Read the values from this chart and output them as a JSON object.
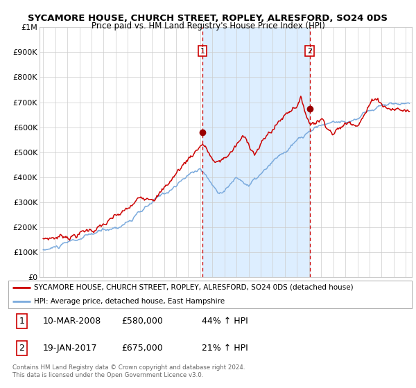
{
  "title": "SYCAMORE HOUSE, CHURCH STREET, ROPLEY, ALRESFORD, SO24 0DS",
  "subtitle": "Price paid vs. HM Land Registry's House Price Index (HPI)",
  "title_fontsize": 9.5,
  "subtitle_fontsize": 8.5,
  "bg_color": "#ffffff",
  "plot_bg_color": "#ffffff",
  "grid_color": "#cccccc",
  "highlight_bg": "#ddeeff",
  "red_line_color": "#cc0000",
  "blue_line_color": "#7aaadd",
  "sale1_date": 2008.19,
  "sale1_price": 580000,
  "sale2_date": 2017.05,
  "sale2_price": 675000,
  "ylabel_ticks": [
    0,
    100000,
    200000,
    300000,
    400000,
    500000,
    600000,
    700000,
    800000,
    900000,
    1000000
  ],
  "ylabel_labels": [
    "£0",
    "£100K",
    "£200K",
    "£300K",
    "£400K",
    "£500K",
    "£600K",
    "£700K",
    "£800K",
    "£900K",
    "£1M"
  ],
  "xmin": 1994.7,
  "xmax": 2025.5,
  "ymin": 0,
  "ymax": 1000000,
  "legend_line1": "SYCAMORE HOUSE, CHURCH STREET, ROPLEY, ALRESFORD, SO24 0DS (detached house)",
  "legend_line2": "HPI: Average price, detached house, East Hampshire",
  "table_row1": [
    "1",
    "10-MAR-2008",
    "£580,000",
    "44% ↑ HPI"
  ],
  "table_row2": [
    "2",
    "19-JAN-2017",
    "£675,000",
    "21% ↑ HPI"
  ],
  "footer1": "Contains HM Land Registry data © Crown copyright and database right 2024.",
  "footer2": "This data is licensed under the Open Government Licence v3.0."
}
